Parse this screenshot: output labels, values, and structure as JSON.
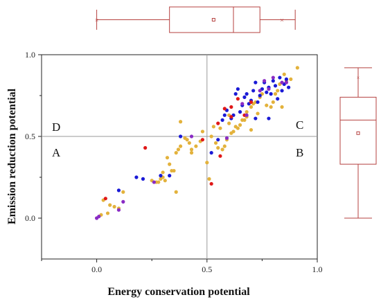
{
  "chart_data": {
    "type": "scatter",
    "xlabel": "Energy conservation potential",
    "ylabel": "Emission reduction potential",
    "xlim": [
      -0.25,
      1.0
    ],
    "ylim": [
      -0.25,
      1.0
    ],
    "xticks": [
      "0.0",
      "0.5",
      "1.0"
    ],
    "yticks": [
      "0.0",
      "0.5",
      "1.0"
    ],
    "xtick_values": [
      0.0,
      0.5,
      1.0
    ],
    "ytick_values": [
      0.0,
      0.5,
      1.0
    ],
    "reference_lines": {
      "x": 0.5,
      "y": 0.5
    },
    "quadrant_labels": {
      "A": "A",
      "B": "B",
      "C": "C",
      "D": "D"
    },
    "colors": {
      "orange": "#e3b23c",
      "blue": "#1a1ad6",
      "red": "#e01818",
      "purple": "#8a2bc4",
      "box": "#b5413f",
      "reference": "#999999"
    },
    "series": [
      {
        "color": "orange",
        "points": [
          [
            0.02,
            0.02
          ],
          [
            0.03,
            0.11
          ],
          [
            0.05,
            0.03
          ],
          [
            0.06,
            0.08
          ],
          [
            0.08,
            0.07
          ],
          [
            0.1,
            0.06
          ],
          [
            0.12,
            0.16
          ],
          [
            0.25,
            0.23
          ],
          [
            0.27,
            0.22
          ],
          [
            0.28,
            0.22
          ],
          [
            0.29,
            0.24
          ],
          [
            0.3,
            0.25
          ],
          [
            0.3,
            0.28
          ],
          [
            0.31,
            0.23
          ],
          [
            0.32,
            0.37
          ],
          [
            0.33,
            0.33
          ],
          [
            0.34,
            0.29
          ],
          [
            0.35,
            0.29
          ],
          [
            0.36,
            0.16
          ],
          [
            0.36,
            0.4
          ],
          [
            0.37,
            0.42
          ],
          [
            0.38,
            0.44
          ],
          [
            0.38,
            0.59
          ],
          [
            0.4,
            0.49
          ],
          [
            0.41,
            0.48
          ],
          [
            0.42,
            0.46
          ],
          [
            0.43,
            0.4
          ],
          [
            0.43,
            0.42
          ],
          [
            0.45,
            0.44
          ],
          [
            0.47,
            0.47
          ],
          [
            0.48,
            0.53
          ],
          [
            0.5,
            0.34
          ],
          [
            0.51,
            0.24
          ],
          [
            0.52,
            0.5
          ],
          [
            0.53,
            0.56
          ],
          [
            0.54,
            0.46
          ],
          [
            0.55,
            0.43
          ],
          [
            0.56,
            0.55
          ],
          [
            0.57,
            0.42
          ],
          [
            0.58,
            0.44
          ],
          [
            0.59,
            0.48
          ],
          [
            0.6,
            0.58
          ],
          [
            0.61,
            0.52
          ],
          [
            0.62,
            0.53
          ],
          [
            0.63,
            0.56
          ],
          [
            0.64,
            0.55
          ],
          [
            0.65,
            0.57
          ],
          [
            0.66,
            0.6
          ],
          [
            0.67,
            0.6
          ],
          [
            0.68,
            0.62
          ],
          [
            0.68,
            0.65
          ],
          [
            0.7,
            0.68
          ],
          [
            0.71,
            0.7
          ],
          [
            0.72,
            0.71
          ],
          [
            0.74,
            0.74
          ],
          [
            0.75,
            0.76
          ],
          [
            0.77,
            0.69
          ],
          [
            0.79,
            0.68
          ],
          [
            0.8,
            0.71
          ],
          [
            0.81,
            0.76
          ],
          [
            0.82,
            0.78
          ],
          [
            0.83,
            0.82
          ],
          [
            0.85,
            0.88
          ],
          [
            0.86,
            0.84
          ],
          [
            0.88,
            0.85
          ],
          [
            0.91,
            0.92
          ],
          [
            0.7,
            0.54
          ],
          [
            0.6,
            0.63
          ],
          [
            0.73,
            0.64
          ],
          [
            0.84,
            0.68
          ]
        ]
      },
      {
        "color": "blue",
        "points": [
          [
            0.1,
            0.17
          ],
          [
            0.18,
            0.25
          ],
          [
            0.21,
            0.24
          ],
          [
            0.29,
            0.26
          ],
          [
            0.33,
            0.26
          ],
          [
            0.38,
            0.5
          ],
          [
            0.52,
            0.4
          ],
          [
            0.55,
            0.48
          ],
          [
            0.57,
            0.6
          ],
          [
            0.58,
            0.63
          ],
          [
            0.59,
            0.66
          ],
          [
            0.61,
            0.61
          ],
          [
            0.62,
            0.63
          ],
          [
            0.63,
            0.76
          ],
          [
            0.64,
            0.79
          ],
          [
            0.65,
            0.65
          ],
          [
            0.66,
            0.69
          ],
          [
            0.67,
            0.74
          ],
          [
            0.68,
            0.76
          ],
          [
            0.69,
            0.7
          ],
          [
            0.7,
            0.72
          ],
          [
            0.71,
            0.78
          ],
          [
            0.72,
            0.83
          ],
          [
            0.73,
            0.71
          ],
          [
            0.74,
            0.75
          ],
          [
            0.75,
            0.79
          ],
          [
            0.76,
            0.83
          ],
          [
            0.77,
            0.77
          ],
          [
            0.78,
            0.8
          ],
          [
            0.79,
            0.76
          ],
          [
            0.8,
            0.84
          ],
          [
            0.81,
            0.81
          ],
          [
            0.82,
            0.73
          ],
          [
            0.83,
            0.86
          ],
          [
            0.84,
            0.78
          ],
          [
            0.85,
            0.82
          ],
          [
            0.86,
            0.85
          ],
          [
            0.87,
            0.8
          ],
          [
            0.78,
            0.61
          ],
          [
            0.72,
            0.61
          ]
        ]
      },
      {
        "color": "red",
        "points": [
          [
            0.04,
            0.12
          ],
          [
            0.22,
            0.43
          ],
          [
            0.48,
            0.48
          ],
          [
            0.52,
            0.21
          ],
          [
            0.55,
            0.58
          ],
          [
            0.58,
            0.67
          ],
          [
            0.61,
            0.62
          ],
          [
            0.61,
            0.68
          ],
          [
            0.64,
            0.73
          ],
          [
            0.67,
            0.63
          ],
          [
            0.7,
            0.71
          ],
          [
            0.56,
            0.38
          ]
        ]
      },
      {
        "color": "purple",
        "points": [
          [
            0.0,
            0.0
          ],
          [
            0.01,
            0.01
          ],
          [
            0.1,
            0.05
          ],
          [
            0.12,
            0.1
          ],
          [
            0.26,
            0.22
          ],
          [
            0.43,
            0.5
          ],
          [
            0.59,
            0.49
          ],
          [
            0.66,
            0.7
          ],
          [
            0.68,
            0.63
          ],
          [
            0.74,
            0.78
          ],
          [
            0.76,
            0.84
          ],
          [
            0.78,
            0.79
          ],
          [
            0.8,
            0.86
          ],
          [
            0.84,
            0.83
          ],
          [
            0.86,
            0.83
          ]
        ]
      }
    ],
    "marginal_boxplots": {
      "x": {
        "min": 0.0,
        "q1": 0.33,
        "median": 0.62,
        "q3": 0.74,
        "max": 0.9,
        "mean": 0.53,
        "outliers": [
          0.84
        ]
      },
      "y": {
        "min": 0.0,
        "q1": 0.33,
        "median": 0.6,
        "q3": 0.74,
        "max": 0.92,
        "mean": 0.52,
        "outliers": [
          0.86
        ]
      }
    }
  }
}
